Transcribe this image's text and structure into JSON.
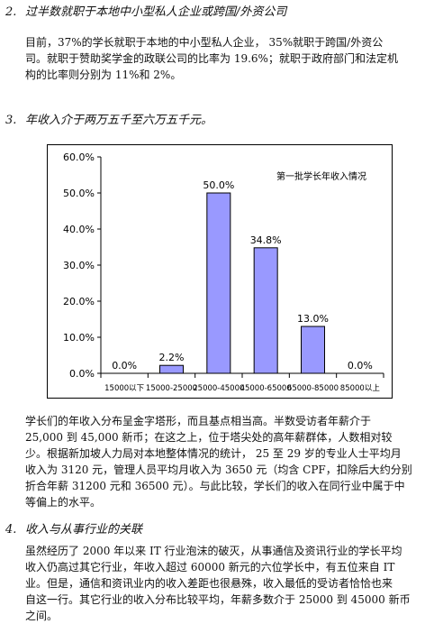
{
  "sections": [
    {
      "number": "2.",
      "title": "过半数就职于本地中小型私人企业或跨国/外资公司",
      "paragraph": [
        "目前，37%的学长就职于本地的中小型私人企业， 35%就职于跨国/外资公",
        "司。就职于赞助奖学金的政联公司的比率为 19.6%；就职于政府部门和法定机",
        "构的比率则分别为 11%和 2%。"
      ]
    },
    {
      "number": "3.",
      "title": "年收入介于两万五千至六万五千元。"
    },
    {
      "number": "4.",
      "title": "收入与从事行业的关联",
      "paragraph": [
        "虽然经历了 2000 年以来 IT 行业泡沫的破灭，从事通信及资讯行业的学长平均",
        "收入仍高过其它行业，年收入超过 60000 新元的六位学长中，有五位来自 IT",
        "业。但是，通信和资讯业内的收入差距也很悬殊，收入最低的受访者恰恰也来",
        "自这一行。其它行业的收入分布比较平均，年薪多数介于 25000 到 45000 新币",
        "之间。"
      ]
    }
  ],
  "chart_paragraph": [
    "学长们的年收入分布呈金字塔形，而且基点相当高。半数受访者年薪介于",
    "25,000 到 45,000 新币；在这之上，位于塔尖处的高年薪群体，人数相对较",
    "少。根据新加坡人力局对本地整体情况的统计， 25 至 29 岁的专业人士平均月",
    "收入为 3120 元，管理人员平均月收入为 3650 元（均含 CPF，扣除后大约分别",
    "折合年薪 31200 元和 36500 元）。与此比较，学长们的收入在同行业中属于中",
    "等偏上的水平。"
  ],
  "chart_data": {
    "type": "bar",
    "title": "第一批学长年收入情况",
    "categories": [
      "15000以下",
      "15000-25000",
      "25000-45000",
      "45000-65000",
      "65000-85000",
      "85000以上"
    ],
    "values": [
      0.0,
      2.2,
      50.0,
      34.8,
      13.0,
      0.0
    ],
    "value_labels": [
      "0.0%",
      "2.2%",
      "50.0%",
      "34.8%",
      "13.0%",
      "0.0%"
    ],
    "yticks": [
      "0.0%",
      "10.0%",
      "20.0%",
      "30.0%",
      "40.0%",
      "50.0%",
      "60.0%"
    ],
    "ylim": [
      0,
      60
    ],
    "xlabel": "",
    "ylabel": "",
    "grid": false,
    "bar_color": "#9999ff",
    "legend": "none"
  }
}
